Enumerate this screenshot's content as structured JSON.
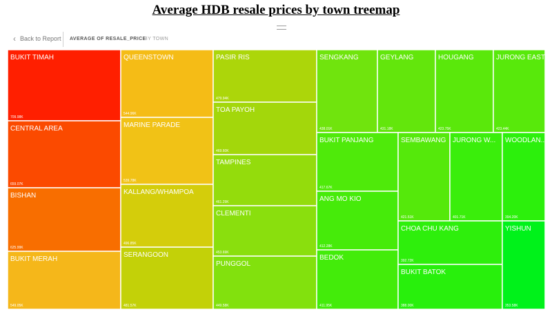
{
  "title": "Average HDB resale prices by town treemap",
  "toolbar": {
    "back_label": "Back to Report",
    "measure_label": "AVERAGE OF RESALE_PRICE",
    "by_label": "BY TOWN"
  },
  "chart_data": {
    "type": "treemap",
    "measure": "AVERAGE OF RESALE_PRICE",
    "group_by": "BY TOWN",
    "columns": [
      [
        "BUKIT TIMAH",
        "CENTRAL AREA",
        "BISHAN",
        "BUKIT MERAH"
      ],
      [
        "QUEENSTOWN",
        "MARINE PARADE",
        "KALLANG/WHAMPOA",
        "SERANGOON"
      ],
      [
        "PASIR RIS",
        "TOA PAYOH",
        "TAMPINES",
        "CLEMENTI",
        "PUNGGOL"
      ],
      {
        "top": [
          "SENGKANG",
          "GEYLANG",
          "HOUGANG",
          "JURONG EAST"
        ],
        "left": [
          "BUKIT PANJANG",
          "ANG MO KIO",
          "BEDOK"
        ],
        "right": {
          "top": [
            "SEMBAWANG",
            "JURONG WEST"
          ],
          "bottom": [
            "CHOA CHU KANG",
            "BUKIT BATOK"
          ],
          "side": [
            "WOODLANDS",
            "YISHUN"
          ]
        }
      }
    ],
    "tiles": [
      {
        "name": "BUKIT TIMAH",
        "label": "BUKIT TIMAH",
        "value": "709.98K",
        "color": "#ff1f00"
      },
      {
        "name": "CENTRAL AREA",
        "label": "CENTRAL AREA",
        "value": "659.07K",
        "color": "#fb4a00"
      },
      {
        "name": "BISHAN",
        "label": "BISHAN",
        "value": "625.99K",
        "color": "#f86e00"
      },
      {
        "name": "BUKIT MERAH",
        "label": "BUKIT MERAH",
        "value": "549.05K",
        "color": "#f5b71a"
      },
      {
        "name": "QUEENSTOWN",
        "label": "QUEENSTOWN",
        "value": "544.96K",
        "color": "#f5bc16"
      },
      {
        "name": "MARINE PARADE",
        "label": "MARINE PARADE",
        "value": "539.78K",
        "color": "#f1c216"
      },
      {
        "name": "KALLANG/WHAMPOA",
        "label": "KALLANG/WHAMPOA",
        "value": "496.85K",
        "color": "#d4cd0b"
      },
      {
        "name": "SERANGOON",
        "label": "SERANGOON",
        "value": "481.57K",
        "color": "#c3d108"
      },
      {
        "name": "PASIR RIS",
        "label": "PASIR RIS",
        "value": "479.94K",
        "color": "#acd60a"
      },
      {
        "name": "TOA PAYOH",
        "label": "TOA PAYOH",
        "value": "469.60K",
        "color": "#a3d70b"
      },
      {
        "name": "TAMPINES",
        "label": "TAMPINES",
        "value": "461.29K",
        "color": "#94dc0c"
      },
      {
        "name": "CLEMENTI",
        "label": "CLEMENTI",
        "value": "453.69K",
        "color": "#8adf0d"
      },
      {
        "name": "PUNGGOL",
        "label": "PUNGGOL",
        "value": "449.58K",
        "color": "#82e10d"
      },
      {
        "name": "SENGKANG",
        "label": "SENGKANG",
        "value": "438.01K",
        "color": "#70e40d"
      },
      {
        "name": "GEYLANG",
        "label": "GEYLANG",
        "value": "431.18K",
        "color": "#63e60c"
      },
      {
        "name": "HOUGANG",
        "label": "HOUGANG",
        "value": "423.75K",
        "color": "#5ae80b"
      },
      {
        "name": "JURONG EAST",
        "label": "JURONG EAST",
        "value": "423.44K",
        "color": "#58e90b"
      },
      {
        "name": "BUKIT PANJANG",
        "label": "BUKIT PANJANG",
        "value": "417.67K",
        "color": "#4fea0a"
      },
      {
        "name": "ANG MO KIO",
        "label": "ANG MO KIO",
        "value": "412.28K",
        "color": "#46eb0a"
      },
      {
        "name": "BEDOK",
        "label": "BEDOK",
        "value": "411.95K",
        "color": "#43ec0a"
      },
      {
        "name": "SEMBAWANG",
        "label": "SEMBAWANG",
        "value": "421.51K",
        "color": "#55e90b"
      },
      {
        "name": "JURONG WEST",
        "label": "JURONG W...",
        "value": "401.71K",
        "color": "#3aee0b"
      },
      {
        "name": "CHOA CHU KANG",
        "label": "CHOA CHU KANG",
        "value": "392.72K",
        "color": "#2eef0c"
      },
      {
        "name": "BUKIT BATOK",
        "label": "BUKIT BATOK",
        "value": "388.00K",
        "color": "#28f00c"
      },
      {
        "name": "WOODLANDS",
        "label": "WOODLAN...",
        "value": "394.20K",
        "color": "#2cf00c"
      },
      {
        "name": "YISHUN",
        "label": "YISHUN",
        "value": "353.58K",
        "color": "#00f21a"
      }
    ]
  }
}
